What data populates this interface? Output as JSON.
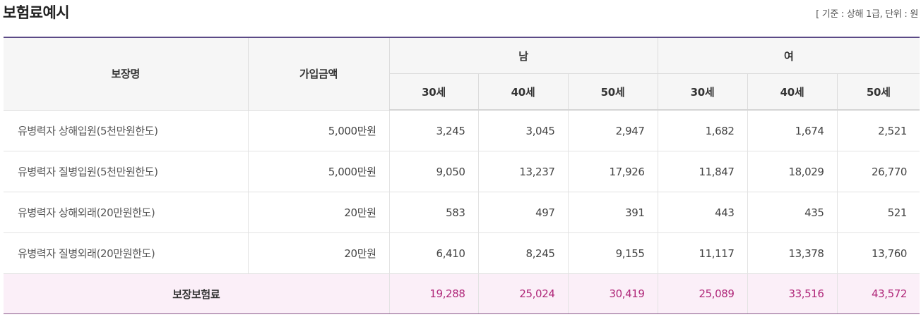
{
  "title": "보험료예시",
  "note": "[ 기준 : 상해 1급, 단위 : 원",
  "table": {
    "headers": {
      "coverage_name": "보장명",
      "amount": "가입금액",
      "male": "남",
      "female": "여",
      "ages": [
        "30세",
        "40세",
        "50세"
      ]
    },
    "rows": [
      {
        "name": "유병력자 상해입원(5천만원한도)",
        "amount": "5,000만원",
        "values": [
          "3,245",
          "3,045",
          "2,947",
          "1,682",
          "1,674",
          "2,521"
        ]
      },
      {
        "name": "유병력자 질병입원(5천만원한도)",
        "amount": "5,000만원",
        "values": [
          "9,050",
          "13,237",
          "17,926",
          "11,847",
          "18,029",
          "26,770"
        ]
      },
      {
        "name": "유병력자 상해외래(20만원한도)",
        "amount": "20만원",
        "values": [
          "583",
          "497",
          "391",
          "443",
          "435",
          "521"
        ]
      },
      {
        "name": "유병력자 질병외래(20만원한도)",
        "amount": "20만원",
        "values": [
          "6,410",
          "8,245",
          "9,155",
          "11,117",
          "13,378",
          "13,760"
        ]
      }
    ],
    "total": {
      "label": "보장보험료",
      "values": [
        "19,288",
        "25,024",
        "30,419",
        "25,089",
        "33,516",
        "43,572"
      ]
    }
  }
}
